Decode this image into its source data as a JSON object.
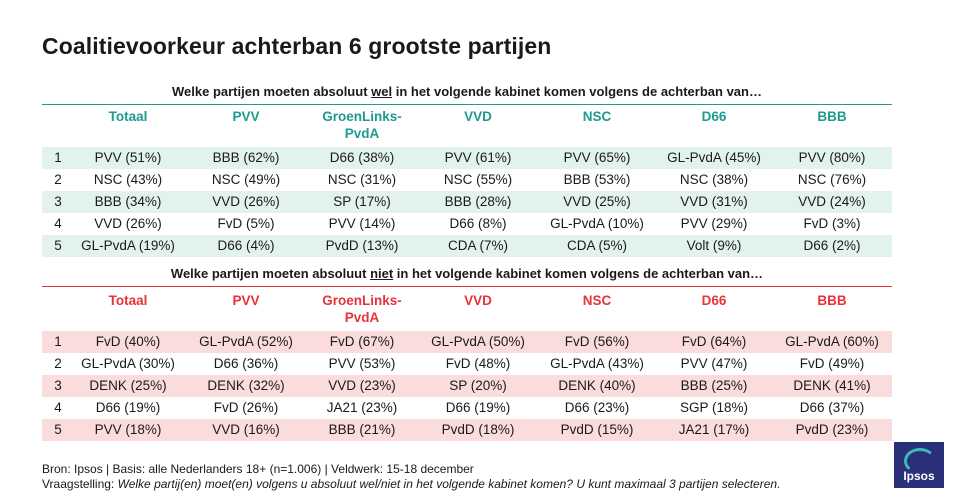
{
  "title": "Coalitievoorkeur achterban 6 grootste partijen",
  "colors": {
    "teal": "#1f9a8f",
    "red": "#e8323a",
    "teal_band": "#e2f2ee",
    "red_band": "#fbdcdc"
  },
  "wel": {
    "question_pre": "Welke partijen moeten absoluut ",
    "question_emph": "wel",
    "question_post": " in het volgende kabinet komen volgens de achterban van…",
    "headers": [
      "Totaal",
      "PVV",
      "GroenLinks-\nPvdA",
      "VVD",
      "NSC",
      "D66",
      "BBB"
    ],
    "rows": [
      {
        "n": "1",
        "cells": [
          "PVV (51%)",
          "BBB (62%)",
          "D66 (38%)",
          "PVV (61%)",
          "PVV (65%)",
          "GL-PvdA (45%)",
          "PVV (80%)"
        ]
      },
      {
        "n": "2",
        "cells": [
          "NSC (43%)",
          "NSC (49%)",
          "NSC (31%)",
          "NSC (55%)",
          "BBB (53%)",
          "NSC (38%)",
          "NSC (76%)"
        ]
      },
      {
        "n": "3",
        "cells": [
          "BBB (34%)",
          "VVD (26%)",
          "SP (17%)",
          "BBB (28%)",
          "VVD (25%)",
          "VVD (31%)",
          "VVD (24%)"
        ]
      },
      {
        "n": "4",
        "cells": [
          "VVD (26%)",
          "FvD (5%)",
          "PVV (14%)",
          "D66 (8%)",
          "GL-PvdA (10%)",
          "PVV (29%)",
          "FvD (3%)"
        ]
      },
      {
        "n": "5",
        "cells": [
          "GL-PvdA (19%)",
          "D66 (4%)",
          "PvdD (13%)",
          "CDA (7%)",
          "CDA (5%)",
          "Volt (9%)",
          "D66 (2%)"
        ]
      }
    ]
  },
  "niet": {
    "question_pre": "Welke partijen moeten absoluut ",
    "question_emph": "niet",
    "question_post": " in het volgende kabinet komen volgens de achterban van…",
    "headers": [
      "Totaal",
      "PVV",
      "GroenLinks-\nPvdA",
      "VVD",
      "NSC",
      "D66",
      "BBB"
    ],
    "rows": [
      {
        "n": "1",
        "cells": [
          "FvD (40%)",
          "GL-PvdA (52%)",
          "FvD (67%)",
          "GL-PvdA (50%)",
          "FvD (56%)",
          "FvD (64%)",
          "GL-PvdA (60%)"
        ]
      },
      {
        "n": "2",
        "cells": [
          "GL-PvdA (30%)",
          "D66 (36%)",
          "PVV (53%)",
          "FvD (48%)",
          "GL-PvdA (43%)",
          "PVV (47%)",
          "FvD (49%)"
        ]
      },
      {
        "n": "3",
        "cells": [
          "DENK (25%)",
          "DENK (32%)",
          "VVD (23%)",
          "SP (20%)",
          "DENK (40%)",
          "BBB (25%)",
          "DENK (41%)"
        ]
      },
      {
        "n": "4",
        "cells": [
          "D66 (19%)",
          "FvD (26%)",
          "JA21 (23%)",
          "D66 (19%)",
          "D66 (23%)",
          "SGP (18%)",
          "D66 (37%)"
        ]
      },
      {
        "n": "5",
        "cells": [
          "PVV (18%)",
          "VVD (16%)",
          "BBB (21%)",
          "PvdD (18%)",
          "PvdD (15%)",
          "JA21 (17%)",
          "PvdD (23%)"
        ]
      }
    ]
  },
  "footer": {
    "line1": "Bron: Ipsos | Basis: alle Nederlanders  18+ (n=1.006) | Veldwerk: 15-18  december",
    "line2_label": "Vraagstelling: ",
    "line2_text": "Welke partij(en)  moet(en) volgens u absoluut wel/niet in het volgende  kabinet komen? U kunt maximaal 3 partijen  selecteren."
  },
  "logo": {
    "text": "Ipsos"
  }
}
